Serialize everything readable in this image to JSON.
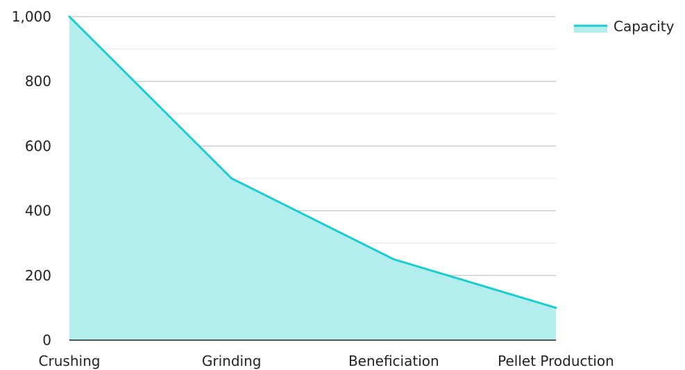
{
  "chart_data": {
    "type": "area",
    "categories": [
      "Crushing",
      "Grinding",
      "Beneficiation",
      "Pellet Production"
    ],
    "series": [
      {
        "name": "Capacity",
        "values": [
          1000,
          500,
          250,
          100
        ]
      }
    ],
    "ylim": [
      0,
      1000
    ],
    "yticks": [
      "0",
      "200",
      "400",
      "600",
      "800",
      "1,000"
    ],
    "grid": true,
    "legend_position": "top-right",
    "colors": {
      "line": "#1ccdcd",
      "fill": "#b2eeee",
      "grid_major": "#b8b8b8",
      "grid_minor": "#e4e4e4",
      "axis": "#222222"
    }
  }
}
